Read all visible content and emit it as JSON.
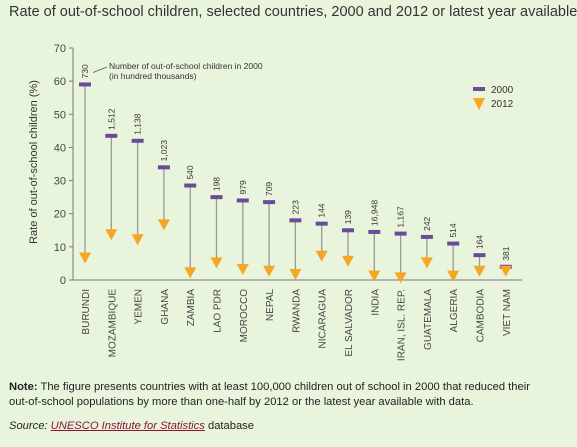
{
  "chart_data": {
    "type": "dot-range",
    "title": "Rate of out-of-school children, selected countries, 2000 and 2012 or latest year available",
    "ylabel": "Rate of out-of-school children (%)",
    "ylim": [
      0,
      70
    ],
    "yticks": [
      0,
      10,
      20,
      30,
      40,
      50,
      60,
      70
    ],
    "grid": false,
    "legend": {
      "placement": "top-right",
      "entries": [
        "2000",
        "2012"
      ]
    },
    "annotation": "Number of out-of-school children in 2000 (in hundred thousands)",
    "categories": [
      "BURUNDI",
      "MOZAMBIQUE",
      "YEMEN",
      "GHANA",
      "ZAMBIA",
      "LAO PDR",
      "MOROCCO",
      "NEPAL",
      "RWANDA",
      "NICARAGUA",
      "EL SALVADOR",
      "INDIA",
      "IRAN, ISL. REP.",
      "GUATEMALA",
      "ALGERIA",
      "CAMBODIA",
      "VIET NAM"
    ],
    "series": [
      {
        "name": "2000",
        "values": [
          59,
          43.5,
          42,
          34,
          28.5,
          25,
          24,
          23.5,
          18,
          17,
          15,
          14.5,
          14,
          13,
          11,
          7.5,
          4
        ]
      },
      {
        "name": "2012",
        "values": [
          6.5,
          13.5,
          12,
          16.5,
          2,
          5,
          3,
          2.5,
          1.5,
          7,
          5.5,
          1,
          0.5,
          5,
          1,
          2.5,
          2.5
        ]
      }
    ],
    "labels_2000": [
      "730",
      "1,512",
      "1,138",
      "1,023",
      "540",
      "198",
      "979",
      "709",
      "223",
      "144",
      "139",
      "16,948",
      "1,167",
      "242",
      "514",
      "164",
      "381"
    ],
    "colors": {
      "marker_2000": "#6b4a9a",
      "marker_2012": "#f5a623",
      "stem": "#999999",
      "axis": "#777777"
    }
  },
  "note": {
    "label": "Note:",
    "text": " The figure presents countries with at least 100,000 children out of school in 2000 that reduced their out-of-school populations by more than one-half by 2012 or the latest year available with data."
  },
  "source": {
    "label": "Source:",
    "link_text": "UNESCO Institute for Statistics",
    "suffix": " database"
  }
}
